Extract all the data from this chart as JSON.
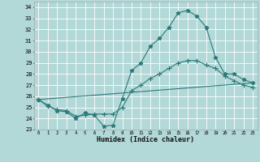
{
  "xlabel": "Humidex (Indice chaleur)",
  "background_color": "#b2d8d8",
  "grid_color": "#ffffff",
  "line_color": "#2d7a7a",
  "xlim": [
    -0.5,
    23.5
  ],
  "ylim": [
    23,
    34.5
  ],
  "yticks": [
    23,
    24,
    25,
    26,
    27,
    28,
    29,
    30,
    31,
    32,
    33,
    34
  ],
  "xticks": [
    0,
    1,
    2,
    3,
    4,
    5,
    6,
    7,
    8,
    9,
    10,
    11,
    12,
    13,
    14,
    15,
    16,
    17,
    18,
    19,
    20,
    21,
    22,
    23
  ],
  "series1_y": [
    25.7,
    25.2,
    24.7,
    24.6,
    24.0,
    24.5,
    24.3,
    23.3,
    23.4,
    25.8,
    28.3,
    29.0,
    30.5,
    31.2,
    32.2,
    33.5,
    33.7,
    33.2,
    32.2,
    29.5,
    28.0,
    28.0,
    27.5,
    27.2
  ],
  "series2_y": [
    25.7,
    25.1,
    24.8,
    24.7,
    24.2,
    24.3,
    24.4,
    24.4,
    24.4,
    25.0,
    26.5,
    27.0,
    27.6,
    28.0,
    28.5,
    29.0,
    29.2,
    29.2,
    28.8,
    28.5,
    27.8,
    27.4,
    27.0,
    26.8
  ],
  "series3_x": [
    0,
    23
  ],
  "series3_y": [
    25.7,
    27.2
  ]
}
